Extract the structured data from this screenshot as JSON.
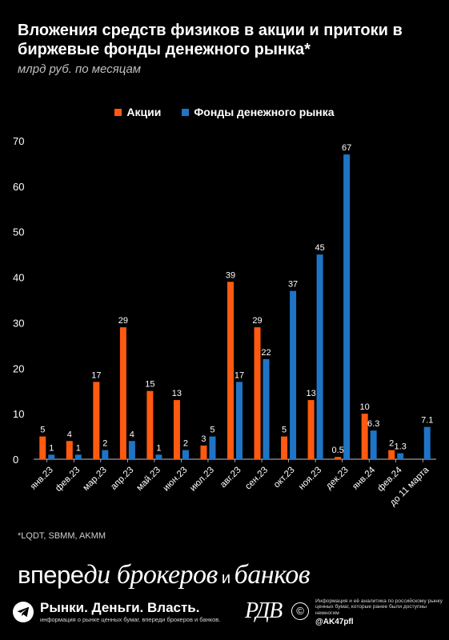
{
  "header": {
    "title": "Вложения средств физиков в акции и притоки в биржевые фонды денежного рынка*",
    "subtitle": "млрд руб. по месяцам"
  },
  "chart_data": {
    "type": "bar",
    "categories": [
      "янв.23",
      "фев.23",
      "мар.23",
      "апр.23",
      "май.23",
      "июн.23",
      "июл.23",
      "авг.23",
      "сен.23",
      "окт.23",
      "ноя.23",
      "дек.23",
      "янв.24",
      "фев.24",
      "до 11 марта"
    ],
    "series": [
      {
        "name": "Акции",
        "color": "#ff5a10",
        "values": [
          5,
          4,
          17,
          29,
          15,
          13,
          3,
          39,
          29,
          5,
          13,
          0.5,
          10,
          2,
          null
        ],
        "labels": [
          "5",
          "4",
          "17",
          "29",
          "15",
          "13",
          "3",
          "39",
          "29",
          "5",
          "13",
          "0.5",
          "10",
          "2",
          ""
        ]
      },
      {
        "name": "Фонды денежного рынка",
        "color": "#1f74c6",
        "values": [
          1,
          1,
          2,
          4,
          1,
          2,
          5,
          17,
          22,
          37,
          45,
          67,
          6.3,
          1.3,
          7.1
        ],
        "labels": [
          "1",
          "1",
          "2",
          "4",
          "1",
          "2",
          "5",
          "17",
          "22",
          "37",
          "45",
          "67",
          "6.3",
          "1.3",
          "7.1"
        ]
      }
    ],
    "ylim": [
      0,
      70
    ],
    "yticks": [
      0,
      10,
      20,
      30,
      40,
      50,
      60,
      70
    ],
    "grid": false,
    "legend_position": "top-center"
  },
  "footnote": "*LQDT, SBMM, AKMM",
  "slogan": {
    "part1": "впере",
    "part2": "ди",
    "part3": "брокеров",
    "part4": " и ",
    "part5": "банков"
  },
  "footer": {
    "channel_name": "Рынки. Деньги. Власть.",
    "channel_tagline": "информация о рынке ценных бумаг. впереди брокеров и банков.",
    "logo_text": "РДВ",
    "copyright_symbol": "©",
    "info_text": "Информация и её аналитика по российскому рынку ценных бумаг, которые ранее были доступны немногим",
    "handle": "@AK47pfl"
  },
  "icons": {
    "telegram": "telegram-icon"
  }
}
